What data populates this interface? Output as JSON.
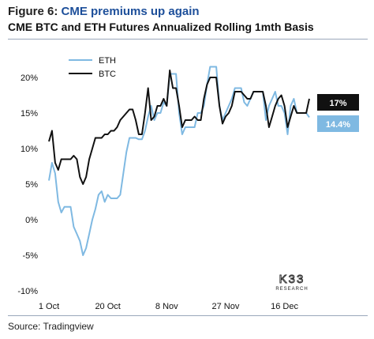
{
  "header": {
    "title_prefix": "Figure 6: ",
    "title_accent": "CME premiums up again",
    "subtitle": "CME BTC and ETH Futures Annualized Rolling 1mth Basis"
  },
  "footer": {
    "source": "Source: Tradingview"
  },
  "logo": {
    "main": "K33",
    "sub": "RESEARCH"
  },
  "colors": {
    "eth": "#7fb9e2",
    "btc": "#111111",
    "eth_badge": "#7fb9e2",
    "btc_badge": "#111111"
  },
  "chart_data": {
    "type": "line",
    "title": "CME BTC and ETH Futures Annualized Rolling 1mth Basis",
    "x": [
      "1 Oct",
      "2 Oct",
      "3 Oct",
      "4 Oct",
      "5 Oct",
      "6 Oct",
      "7 Oct",
      "8 Oct",
      "9 Oct",
      "10 Oct",
      "11 Oct",
      "12 Oct",
      "13 Oct",
      "14 Oct",
      "15 Oct",
      "16 Oct",
      "17 Oct",
      "18 Oct",
      "19 Oct",
      "20 Oct",
      "21 Oct",
      "22 Oct",
      "23 Oct",
      "24 Oct",
      "25 Oct",
      "26 Oct",
      "27 Oct",
      "28 Oct",
      "29 Oct",
      "30 Oct",
      "31 Oct",
      "1 Nov",
      "2 Nov",
      "3 Nov",
      "4 Nov",
      "5 Nov",
      "6 Nov",
      "7 Nov",
      "8 Nov",
      "9 Nov",
      "10 Nov",
      "11 Nov",
      "12 Nov",
      "13 Nov",
      "14 Nov",
      "15 Nov",
      "16 Nov",
      "17 Nov",
      "18 Nov",
      "19 Nov",
      "20 Nov",
      "21 Nov",
      "22 Nov",
      "23 Nov",
      "24 Nov",
      "25 Nov",
      "26 Nov",
      "27 Nov",
      "28 Nov",
      "29 Nov",
      "30 Nov",
      "1 Dec",
      "2 Dec",
      "3 Dec",
      "4 Dec",
      "5 Dec",
      "6 Dec",
      "7 Dec",
      "8 Dec",
      "9 Dec",
      "10 Dec",
      "11 Dec",
      "12 Dec",
      "13 Dec",
      "14 Dec",
      "15 Dec",
      "16 Dec",
      "17 Dec",
      "18 Dec",
      "19 Dec",
      "20 Dec",
      "21 Dec",
      "22 Dec",
      "23 Dec",
      "24 Dec"
    ],
    "x_ticks": [
      "1 Oct",
      "20 Oct",
      "8 Nov",
      "27 Nov",
      "16 Dec"
    ],
    "series": [
      {
        "name": "ETH",
        "values": [
          5.5,
          8.0,
          6.5,
          2.5,
          1.0,
          1.8,
          1.8,
          1.8,
          -1.0,
          -2.0,
          -3.0,
          -5.0,
          -4.0,
          -2.0,
          0.0,
          1.5,
          3.5,
          4.0,
          2.5,
          3.5,
          3.0,
          3.0,
          3.0,
          3.5,
          6.5,
          9.5,
          11.5,
          11.5,
          11.5,
          11.3,
          11.3,
          12.5,
          14.5,
          16.0,
          14.0,
          15.0,
          15.0,
          16.5,
          16.0,
          20.5,
          20.5,
          20.5,
          15.0,
          12.0,
          13.0,
          13.0,
          13.0,
          13.0,
          15.0,
          15.0,
          16.0,
          19.0,
          21.5,
          21.5,
          21.5,
          16.0,
          14.0,
          15.0,
          16.0,
          17.0,
          18.5,
          18.5,
          18.5,
          16.5,
          16.0,
          17.0,
          18.0,
          18.0,
          18.0,
          18.0,
          14.0,
          16.0,
          17.0,
          18.0,
          16.0,
          16.0,
          15.0,
          12.0,
          16.0,
          17.0,
          15.0,
          15.0,
          15.0,
          15.0,
          14.4
        ]
      },
      {
        "name": "BTC",
        "values": [
          11.0,
          12.5,
          8.0,
          7.0,
          8.5,
          8.5,
          8.5,
          8.5,
          9.0,
          8.5,
          6.0,
          5.0,
          6.0,
          8.5,
          10.0,
          11.5,
          11.5,
          11.5,
          12.0,
          12.0,
          12.5,
          12.5,
          13.0,
          14.0,
          14.5,
          15.0,
          15.5,
          15.5,
          14.0,
          12.0,
          12.0,
          15.0,
          18.5,
          14.0,
          14.5,
          16.0,
          16.0,
          17.0,
          16.0,
          21.0,
          18.5,
          18.5,
          16.0,
          13.0,
          14.0,
          14.0,
          14.0,
          14.5,
          14.0,
          14.0,
          17.0,
          19.0,
          20.0,
          20.0,
          20.0,
          16.0,
          13.5,
          14.5,
          15.0,
          16.0,
          18.0,
          18.0,
          18.0,
          17.5,
          17.0,
          17.0,
          18.0,
          18.0,
          18.0,
          18.0,
          16.0,
          13.0,
          14.5,
          16.0,
          17.0,
          17.5,
          16.0,
          13.0,
          14.5,
          16.0,
          15.0,
          15.0,
          15.0,
          15.0,
          17.0
        ]
      }
    ],
    "y_ticks": [
      20,
      15,
      10,
      5,
      0,
      -5,
      -10
    ],
    "y_tick_labels": [
      "20%",
      "15%",
      "10%",
      "5%",
      "0%",
      "-5%",
      "-10%"
    ],
    "ylim": [
      -10,
      22
    ],
    "legend": {
      "placement": "top-left",
      "entries": [
        "ETH",
        "BTC"
      ]
    },
    "end_labels": [
      {
        "series": "BTC",
        "text": "17%"
      },
      {
        "series": "ETH",
        "text": "14.4%"
      }
    ],
    "grid": false
  }
}
